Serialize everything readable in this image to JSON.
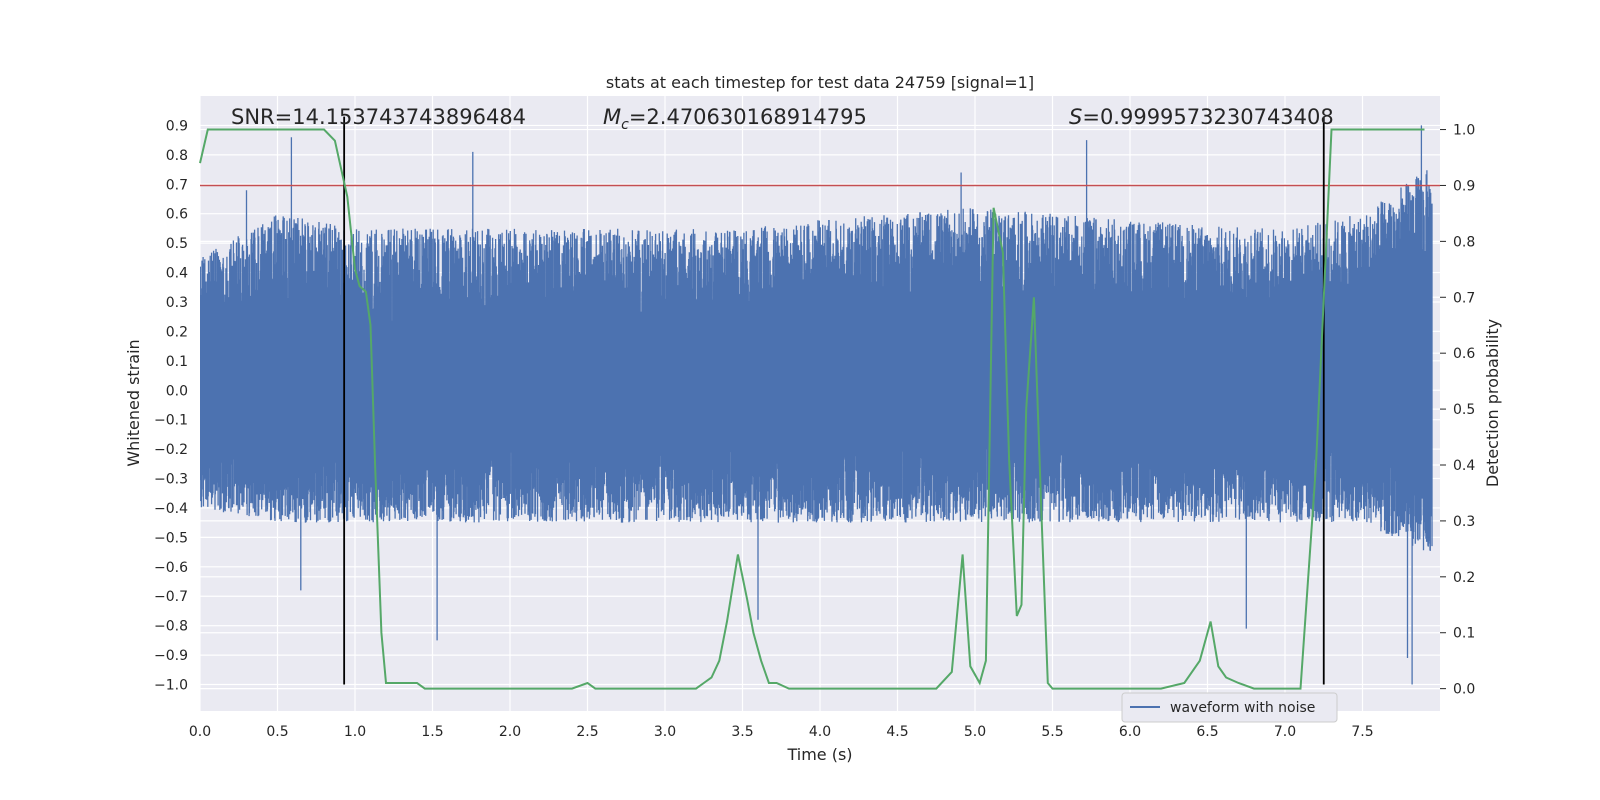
{
  "chart_data": {
    "type": "line",
    "title": "stats at each timestep for test data 24759 [signal=1]",
    "xlabel": "Time (s)",
    "ylabel": "Whitened strain",
    "y2label": "Detection probability",
    "xlim": [
      0.0,
      8.0
    ],
    "ylim": [
      -1.09,
      1.0
    ],
    "y2lim": [
      -0.04,
      1.06
    ],
    "x_ticks": [
      0.0,
      0.5,
      1.0,
      1.5,
      2.0,
      2.5,
      3.0,
      3.5,
      4.0,
      4.5,
      5.0,
      5.5,
      6.0,
      6.5,
      7.0,
      7.5
    ],
    "x_tick_labels": [
      "0.0",
      "0.5",
      "1.0",
      "1.5",
      "2.0",
      "2.5",
      "3.0",
      "3.5",
      "4.0",
      "4.5",
      "5.0",
      "5.5",
      "6.0",
      "6.5",
      "7.0",
      "7.5"
    ],
    "y_ticks": [
      0.9,
      0.8,
      0.7,
      0.6,
      0.5,
      0.4,
      0.3,
      0.2,
      0.1,
      0.0,
      -0.1,
      -0.2,
      -0.3,
      -0.4,
      -0.5,
      -0.6,
      -0.7,
      -0.8,
      -0.9,
      -1.0
    ],
    "y_tick_labels": [
      "0.9",
      "0.8",
      "0.7",
      "0.6",
      "0.5",
      "0.4",
      "0.3",
      "0.2",
      "0.1",
      "0.0",
      "−0.1",
      "−0.2",
      "−0.3",
      "−0.4",
      "−0.5",
      "−0.6",
      "−0.7",
      "−0.8",
      "−0.9",
      "−1.0"
    ],
    "y2_ticks": [
      1.0,
      0.9,
      0.8,
      0.7,
      0.6,
      0.5,
      0.4,
      0.3,
      0.2,
      0.1,
      0.0
    ],
    "y2_tick_labels": [
      "1.0",
      "0.9",
      "0.8",
      "0.7",
      "0.6",
      "0.5",
      "0.4",
      "0.3",
      "0.2",
      "0.1",
      "0.0"
    ],
    "grid": true,
    "annotations": {
      "snr": "SNR=14.153743743896484",
      "mc_symbol": "M",
      "mc_sub": "c",
      "mc_value": "=2.470630168914795",
      "s_symbol": "S",
      "s_value": "=0.9999573230743408"
    },
    "threshold_y2": 0.9,
    "vertical_lines_x": [
      0.93,
      7.25
    ],
    "legend": {
      "location": "lower-right",
      "entries": [
        "waveform with noise"
      ]
    },
    "waveform_envelope": {
      "name": "waveform with noise",
      "x": [
        0.0,
        0.5,
        1.0,
        1.5,
        2.0,
        2.5,
        3.0,
        3.5,
        4.0,
        4.5,
        5.0,
        5.5,
        6.0,
        6.5,
        7.0,
        7.5,
        7.9
      ],
      "upper": [
        0.45,
        0.6,
        0.55,
        0.55,
        0.55,
        0.55,
        0.55,
        0.55,
        0.58,
        0.6,
        0.62,
        0.6,
        0.58,
        0.56,
        0.55,
        0.6,
        0.75
      ],
      "lower": [
        -0.4,
        -0.45,
        -0.45,
        -0.45,
        -0.45,
        -0.45,
        -0.45,
        -0.45,
        -0.45,
        -0.45,
        -0.45,
        -0.45,
        -0.45,
        -0.45,
        -0.45,
        -0.45,
        -0.55
      ],
      "peaks": [
        {
          "x": 0.59,
          "y": 0.86
        },
        {
          "x": 1.76,
          "y": 0.81
        },
        {
          "x": 4.91,
          "y": 0.74
        },
        {
          "x": 5.72,
          "y": 0.85
        },
        {
          "x": 7.88,
          "y": 0.9
        },
        {
          "x": 0.3,
          "y": 0.68
        },
        {
          "x": 1.53,
          "y": -0.85
        },
        {
          "x": 3.6,
          "y": -0.78
        },
        {
          "x": 6.75,
          "y": -0.81
        },
        {
          "x": 7.82,
          "y": -1.0
        },
        {
          "x": 0.65,
          "y": -0.68
        },
        {
          "x": 7.79,
          "y": -0.91
        }
      ]
    },
    "detection_probability": {
      "x": [
        0.0,
        0.05,
        0.1,
        0.2,
        0.3,
        0.4,
        0.5,
        0.6,
        0.7,
        0.8,
        0.87,
        0.95,
        1.0,
        1.03,
        1.07,
        1.1,
        1.13,
        1.17,
        1.2,
        1.25,
        1.3,
        1.35,
        1.4,
        1.45,
        1.5,
        1.55,
        1.6,
        1.7,
        1.8,
        1.9,
        2.0,
        2.1,
        2.2,
        2.3,
        2.4,
        2.5,
        2.55,
        2.6,
        2.7,
        2.8,
        2.9,
        3.0,
        3.1,
        3.2,
        3.25,
        3.3,
        3.35,
        3.4,
        3.47,
        3.53,
        3.57,
        3.62,
        3.67,
        3.72,
        3.8,
        3.9,
        4.0,
        4.2,
        4.4,
        4.6,
        4.75,
        4.85,
        4.92,
        4.97,
        5.03,
        5.07,
        5.12,
        5.18,
        5.22,
        5.27,
        5.3,
        5.33,
        5.38,
        5.43,
        5.47,
        5.5,
        5.53,
        5.57,
        5.65,
        5.8,
        6.0,
        6.2,
        6.35,
        6.45,
        6.52,
        6.57,
        6.62,
        6.7,
        6.8,
        6.9,
        7.0,
        7.1,
        7.2,
        7.25,
        7.3,
        7.35,
        7.5,
        7.7,
        7.9
      ],
      "y": [
        0.94,
        1.0,
        1.0,
        1.0,
        1.0,
        1.0,
        1.0,
        1.0,
        1.0,
        1.0,
        0.98,
        0.88,
        0.75,
        0.72,
        0.71,
        0.65,
        0.4,
        0.1,
        0.01,
        0.01,
        0.01,
        0.01,
        0.01,
        0.0,
        0.0,
        0.0,
        0.0,
        0.0,
        0.0,
        0.0,
        0.0,
        0.0,
        0.0,
        0.0,
        0.0,
        0.01,
        0.0,
        0.0,
        0.0,
        0.0,
        0.0,
        0.0,
        0.0,
        0.0,
        0.01,
        0.02,
        0.05,
        0.12,
        0.24,
        0.16,
        0.1,
        0.05,
        0.01,
        0.01,
        0.0,
        0.0,
        0.0,
        0.0,
        0.0,
        0.0,
        0.0,
        0.03,
        0.24,
        0.04,
        0.01,
        0.05,
        0.86,
        0.78,
        0.41,
        0.13,
        0.15,
        0.5,
        0.7,
        0.3,
        0.01,
        0.0,
        0.0,
        0.0,
        0.0,
        0.0,
        0.0,
        0.0,
        0.01,
        0.05,
        0.12,
        0.04,
        0.02,
        0.01,
        0.0,
        0.0,
        0.0,
        0.0,
        0.4,
        0.7,
        1.0,
        1.0,
        1.0,
        1.0,
        1.0
      ]
    }
  }
}
